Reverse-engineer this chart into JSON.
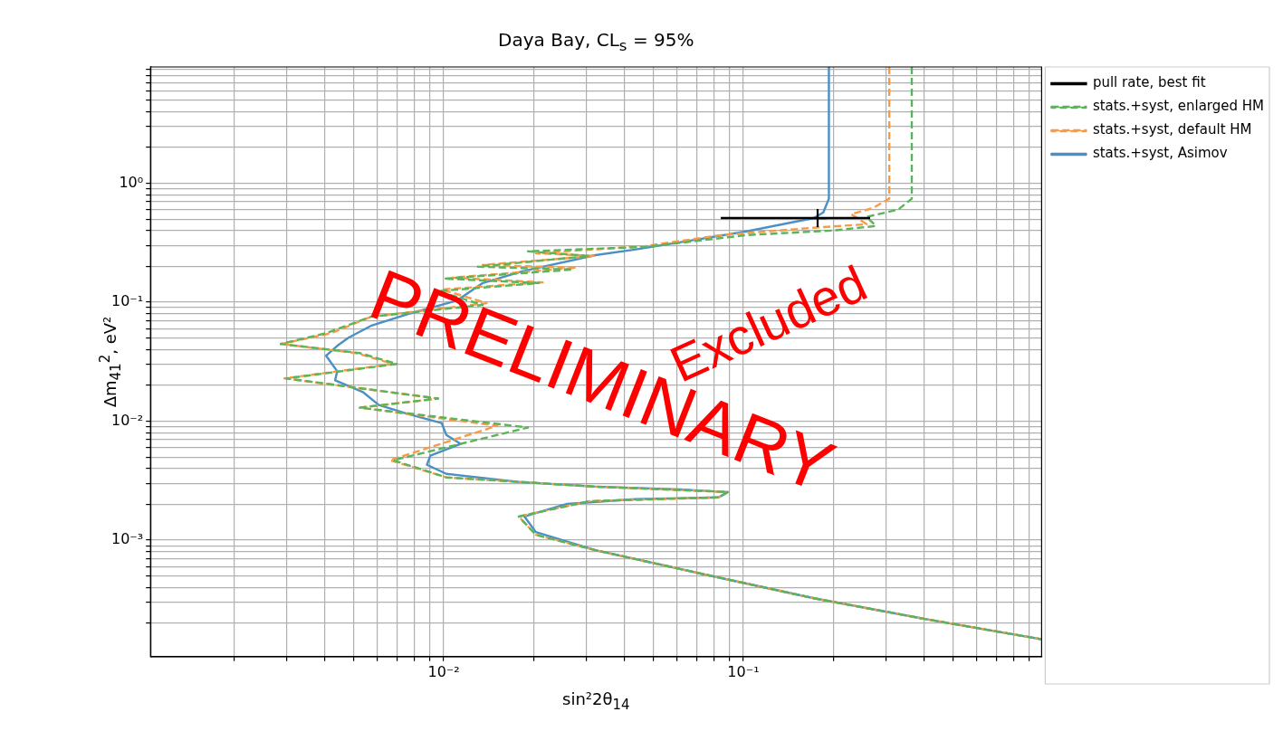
{
  "chart_data": {
    "type": "line",
    "title": "Daya Bay, CL$_{s}$ = 95%",
    "xlabel": "sin²2θ$_{14}$",
    "ylabel": "Δm$_{41}$$^{2}$, eV²",
    "log": "xy",
    "grid": true,
    "legend": "right",
    "marker": "none",
    "xlim": [
      0.00105,
      0.99
    ],
    "ylim": [
      0.000105,
      9.5
    ],
    "xticks": [
      {
        "value": 0.002,
        "label": null
      },
      {
        "value": 0.003,
        "label": null
      },
      {
        "value": 0.004,
        "label": null
      },
      {
        "value": 0.005,
        "label": null
      },
      {
        "value": 0.006,
        "label": null
      },
      {
        "value": 0.007,
        "label": null
      },
      {
        "value": 0.008,
        "label": null
      },
      {
        "value": 0.009,
        "label": null
      },
      {
        "value": 0.01,
        "label": "10⁻²"
      },
      {
        "value": 0.02,
        "label": null
      },
      {
        "value": 0.03,
        "label": null
      },
      {
        "value": 0.04,
        "label": null
      },
      {
        "value": 0.05,
        "label": null
      },
      {
        "value": 0.06,
        "label": null
      },
      {
        "value": 0.07,
        "label": null
      },
      {
        "value": 0.08,
        "label": null
      },
      {
        "value": 0.09,
        "label": null
      },
      {
        "value": 0.1,
        "label": "10⁻¹"
      },
      {
        "value": 0.2,
        "label": null
      },
      {
        "value": 0.3,
        "label": null
      },
      {
        "value": 0.4,
        "label": null
      },
      {
        "value": 0.5,
        "label": null
      },
      {
        "value": 0.6,
        "label": null
      },
      {
        "value": 0.7,
        "label": null
      },
      {
        "value": 0.8,
        "label": null
      },
      {
        "value": 0.9,
        "label": null
      }
    ],
    "yticks": [
      {
        "value": 0.0002,
        "label": null
      },
      {
        "value": 0.0003,
        "label": null
      },
      {
        "value": 0.0004,
        "label": null
      },
      {
        "value": 0.0005,
        "label": null
      },
      {
        "value": 0.0006,
        "label": null
      },
      {
        "value": 0.0007,
        "label": null
      },
      {
        "value": 0.0008,
        "label": null
      },
      {
        "value": 0.0009,
        "label": null
      },
      {
        "value": 0.001,
        "label": "10⁻³"
      },
      {
        "value": 0.002,
        "label": null
      },
      {
        "value": 0.003,
        "label": null
      },
      {
        "value": 0.004,
        "label": null
      },
      {
        "value": 0.005,
        "label": null
      },
      {
        "value": 0.006,
        "label": null
      },
      {
        "value": 0.007,
        "label": null
      },
      {
        "value": 0.008,
        "label": null
      },
      {
        "value": 0.009,
        "label": null
      },
      {
        "value": 0.01,
        "label": "10⁻²"
      },
      {
        "value": 0.02,
        "label": null
      },
      {
        "value": 0.03,
        "label": null
      },
      {
        "value": 0.04,
        "label": null
      },
      {
        "value": 0.05,
        "label": null
      },
      {
        "value": 0.06,
        "label": null
      },
      {
        "value": 0.07,
        "label": null
      },
      {
        "value": 0.08,
        "label": null
      },
      {
        "value": 0.09,
        "label": null
      },
      {
        "value": 0.1,
        "label": "10⁻¹"
      },
      {
        "value": 0.2,
        "label": null
      },
      {
        "value": 0.3,
        "label": null
      },
      {
        "value": 0.4,
        "label": null
      },
      {
        "value": 0.5,
        "label": null
      },
      {
        "value": 0.6,
        "label": null
      },
      {
        "value": 0.7,
        "label": null
      },
      {
        "value": 0.8,
        "label": null
      },
      {
        "value": 0.9,
        "label": null
      },
      {
        "value": 1,
        "label": "10⁰"
      },
      {
        "value": 2,
        "label": null
      },
      {
        "value": 3,
        "label": null
      },
      {
        "value": 4,
        "label": null
      },
      {
        "value": 5,
        "label": null
      },
      {
        "value": 6,
        "label": null
      },
      {
        "value": 7,
        "label": null
      },
      {
        "value": 8,
        "label": null
      },
      {
        "value": 9,
        "label": null
      }
    ],
    "annotations": [
      "PRELIMINARY",
      "Excluded"
    ],
    "series": [
      {
        "name": "stats.+syst, Asimov",
        "color": "#4a90c4",
        "line_style": "solid",
        "x": [
          0.193,
          0.193,
          0.185,
          0.172,
          0.1026,
          0.0667,
          0.0434,
          0.0321,
          0.0183,
          0.0135,
          0.0111,
          0.0076,
          0.00571,
          0.00481,
          0.00441,
          0.00405,
          0.00441,
          0.00434,
          0.00537,
          0.00607,
          0.0076,
          0.00984,
          0.0102,
          0.0114,
          0.00902,
          0.00879,
          0.0102,
          0.018,
          0.0321,
          0.0612,
          0.0887,
          0.0828,
          0.0434,
          0.0258,
          0.0186,
          0.0203,
          0.0321,
          0.0726,
          0.172,
          0.407,
          0.99
        ],
        "values": [
          9.5,
          0.742,
          0.57,
          0.51,
          0.394,
          0.33,
          0.277,
          0.249,
          0.182,
          0.145,
          0.1036,
          0.0796,
          0.0633,
          0.0504,
          0.043,
          0.0355,
          0.0263,
          0.0221,
          0.0176,
          0.0137,
          0.0115,
          0.00966,
          0.00768,
          0.00644,
          0.00513,
          0.0043,
          0.00361,
          0.00308,
          0.00282,
          0.00267,
          0.00254,
          0.00229,
          0.00221,
          0.00202,
          0.00158,
          0.00117,
          0.000824,
          0.000522,
          0.000325,
          0.000217,
          0.000147
        ]
      },
      {
        "name": "stats.+syst, default HM",
        "color": "#f99b45",
        "line_style": "dashed",
        "x": [
          0.307,
          0.307,
          0.272,
          0.229,
          0.258,
          0.172,
          0.0841,
          0.0472,
          0.0203,
          0.0321,
          0.0135,
          0.0277,
          0.0107,
          0.0214,
          0.00984,
          0.0139,
          0.00571,
          0.00422,
          0.00286,
          0.0051,
          0.00678,
          0.00294,
          0.00958,
          0.00524,
          0.0151,
          0.00661,
          0.0102,
          0.0321,
          0.0887,
          0.0828,
          0.0307,
          0.0178,
          0.0203,
          0.0321,
          0.0726,
          0.172,
          0.407,
          0.99
        ],
        "values": [
          9.5,
          0.742,
          0.622,
          0.55,
          0.453,
          0.423,
          0.367,
          0.297,
          0.258,
          0.245,
          0.206,
          0.195,
          0.161,
          0.147,
          0.128,
          0.0982,
          0.0755,
          0.055,
          0.0446,
          0.0374,
          0.0303,
          0.0229,
          0.0155,
          0.013,
          0.00917,
          0.0047,
          0.00337,
          0.00282,
          0.00254,
          0.00229,
          0.00213,
          0.00158,
          0.00111,
          0.000824,
          0.000522,
          0.000325,
          0.000217,
          0.000147
        ]
      },
      {
        "name": "stats.+syst, enlarged HM",
        "color": "#5ab55a",
        "line_style": "dashed",
        "x": [
          0.365,
          0.365,
          0.329,
          0.258,
          0.277,
          0.2,
          0.1026,
          0.0472,
          0.0191,
          0.0307,
          0.013,
          0.027,
          0.01,
          0.0208,
          0.00958,
          0.0135,
          0.00571,
          0.00405,
          0.00286,
          0.00524,
          0.00697,
          0.00299,
          0.00958,
          0.00524,
          0.0191,
          0.00678,
          0.0102,
          0.0321,
          0.0887,
          0.0828,
          0.0307,
          0.0178,
          0.0203,
          0.0321,
          0.0726,
          0.172,
          0.407,
          0.99
        ],
        "values": [
          9.5,
          0.742,
          0.601,
          0.522,
          0.438,
          0.401,
          0.367,
          0.292,
          0.268,
          0.245,
          0.199,
          0.188,
          0.158,
          0.145,
          0.124,
          0.0949,
          0.0755,
          0.055,
          0.0446,
          0.0374,
          0.0303,
          0.0229,
          0.0155,
          0.013,
          0.00885,
          0.0047,
          0.00337,
          0.00282,
          0.00254,
          0.00229,
          0.00213,
          0.00158,
          0.00111,
          0.000824,
          0.000522,
          0.000325,
          0.000217,
          0.000147
        ]
      },
      {
        "name": "pull rate, best fit",
        "type": "scatter",
        "color": "#000000",
        "marker": "cross",
        "x": [
          0.177
        ],
        "values": [
          0.51
        ],
        "xerrors": [
          [
            0.0841,
            0.265
          ]
        ]
      }
    ]
  }
}
